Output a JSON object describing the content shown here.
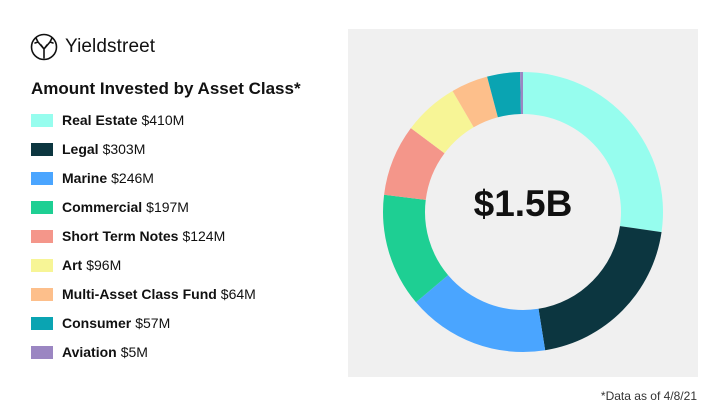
{
  "brand": {
    "name": "Yieldstreet",
    "logo_icon": "deer-antler-icon"
  },
  "footnote": "*Data as of 4/8/21",
  "chart_data": {
    "type": "pie",
    "title": "Amount Invested by Asset Class*",
    "center_label": "$1.5B",
    "unit": "$M",
    "categories": [
      "Real Estate",
      "Legal",
      "Marine",
      "Commercial",
      "Short Term Notes",
      "Art",
      "Multi-Asset Class Fund",
      "Consumer",
      "Aviation"
    ],
    "values": [
      410,
      303,
      246,
      197,
      124,
      96,
      64,
      57,
      5
    ],
    "value_labels": [
      "$410M",
      "$303M",
      "$246M",
      "$197M",
      "$124M",
      "$96M",
      "$64M",
      "$57M",
      "$5M"
    ],
    "colors": [
      "#96fdee",
      "#0c3640",
      "#4aa5ff",
      "#1ecf93",
      "#f4968a",
      "#f7f596",
      "#fdbf8b",
      "#0aa4b2",
      "#9b86c2"
    ],
    "legend_position": "left",
    "donut": true
  }
}
